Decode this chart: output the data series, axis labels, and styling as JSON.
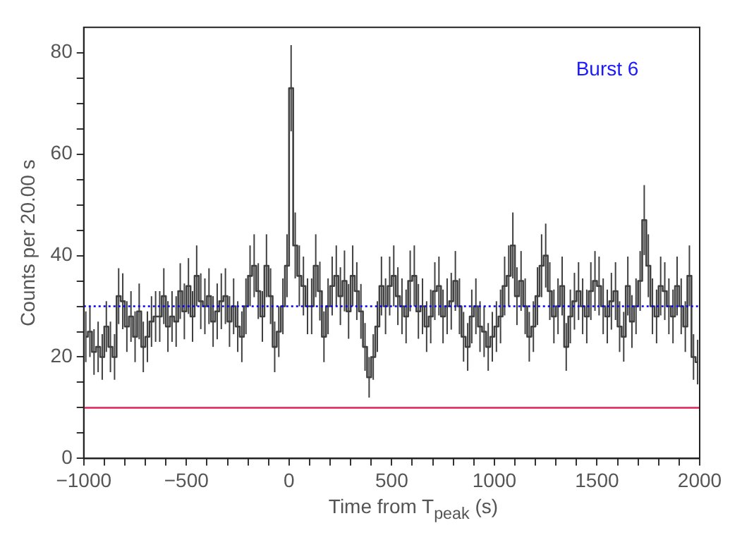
{
  "chart_data": {
    "type": "step",
    "xlabel": "Time from T$_{peak}$ (s)",
    "ylabel": "Counts per 20.00 s",
    "annotations": [
      "Burst 6"
    ],
    "x": [
      -990,
      -970,
      -950,
      -930,
      -910,
      -890,
      -870,
      -850,
      -830,
      -810,
      -790,
      -770,
      -750,
      -730,
      -710,
      -690,
      -670,
      -650,
      -630,
      -610,
      -590,
      -570,
      -550,
      -530,
      -510,
      -490,
      -470,
      -450,
      -430,
      -410,
      -390,
      -370,
      -350,
      -330,
      -310,
      -290,
      -270,
      -250,
      -230,
      -210,
      -190,
      -170,
      -150,
      -130,
      -110,
      -90,
      -70,
      -50,
      -30,
      -10,
      10,
      30,
      50,
      70,
      90,
      110,
      130,
      150,
      170,
      190,
      210,
      230,
      250,
      270,
      290,
      310,
      330,
      350,
      370,
      390,
      410,
      430,
      450,
      470,
      490,
      510,
      530,
      550,
      570,
      590,
      610,
      630,
      650,
      670,
      690,
      710,
      730,
      750,
      770,
      790,
      810,
      830,
      850,
      870,
      890,
      910,
      930,
      950,
      970,
      990,
      1010,
      1030,
      1050,
      1070,
      1090,
      1110,
      1130,
      1150,
      1170,
      1190,
      1210,
      1230,
      1250,
      1270,
      1290,
      1310,
      1330,
      1350,
      1370,
      1390,
      1410,
      1430,
      1450,
      1470,
      1490,
      1510,
      1530,
      1550,
      1570,
      1590,
      1610,
      1630,
      1650,
      1670,
      1690,
      1710,
      1730,
      1750,
      1770,
      1790,
      1810,
      1830,
      1850,
      1870,
      1890,
      1910,
      1930,
      1950,
      1970,
      1990
    ],
    "values": [
      24,
      25,
      21,
      22,
      20,
      26,
      22,
      20,
      32,
      31,
      26,
      28,
      24,
      29,
      22,
      24,
      27,
      28,
      28,
      32,
      26,
      28,
      27,
      33,
      29,
      34,
      28,
      36,
      31,
      30,
      32,
      27,
      29,
      31,
      32,
      27,
      30,
      26,
      24,
      30,
      36,
      38,
      33,
      28,
      38,
      32,
      22,
      25,
      30,
      38,
      73,
      42,
      36,
      34,
      30,
      30,
      38,
      33,
      24,
      30,
      34,
      36,
      32,
      35,
      29,
      36,
      33,
      29,
      22,
      16,
      20,
      26,
      34,
      30,
      34,
      36,
      32,
      30,
      28,
      35,
      36,
      29,
      30,
      26,
      28,
      33,
      34,
      28,
      30,
      31,
      35,
      30,
      24,
      22,
      28,
      30,
      26,
      25,
      22,
      24,
      26,
      28,
      34,
      36,
      42,
      32,
      35,
      30,
      24,
      26,
      32,
      38,
      40,
      33,
      28,
      30,
      34,
      22,
      28,
      31,
      33,
      30,
      28,
      33,
      35,
      34,
      30,
      28,
      31,
      33,
      26,
      24,
      34,
      27,
      30,
      35,
      47,
      38,
      30,
      28,
      34,
      33,
      30,
      28,
      34,
      30,
      26,
      36,
      20,
      19
    ],
    "errors": [
      5,
      5,
      4.5,
      5,
      4.5,
      5,
      5,
      4.5,
      5.5,
      5.5,
      5,
      5,
      5,
      5.5,
      5,
      5,
      5,
      5,
      5,
      5.5,
      5,
      5,
      5,
      5.5,
      5.5,
      5.5,
      5,
      6,
      5.5,
      5.5,
      5.5,
      5,
      5.5,
      5.5,
      5.5,
      5,
      5.5,
      5,
      5,
      5.5,
      6,
      6.2,
      5.5,
      5,
      6.2,
      5.5,
      5,
      5,
      5.5,
      6.2,
      8.5,
      6.5,
      6,
      5.8,
      5.5,
      5.5,
      6.2,
      5.8,
      5,
      5.5,
      5.8,
      6,
      5.7,
      6,
      5.4,
      6,
      5.7,
      5.4,
      4.7,
      4,
      4.5,
      5,
      5.8,
      5.5,
      5.8,
      6,
      5.7,
      5.5,
      5.3,
      6,
      6,
      5.4,
      5.5,
      5,
      5.3,
      5.7,
      5.8,
      5.3,
      5.5,
      5.6,
      5.9,
      5.5,
      4.9,
      4.7,
      5.3,
      5.5,
      5,
      5,
      4.7,
      4.9,
      5,
      5.3,
      5.8,
      6,
      6.5,
      5.7,
      5.9,
      5.5,
      4.9,
      5,
      5.7,
      6.2,
      6.3,
      5.7,
      5.3,
      5.5,
      5.8,
      4.7,
      5.3,
      5.6,
      5.7,
      5.5,
      5.3,
      5.7,
      5.9,
      5.8,
      5.5,
      5.3,
      5.6,
      5.7,
      5,
      4.9,
      5.8,
      5.2,
      5.5,
      5.9,
      6.9,
      6.2,
      5.5,
      5.3,
      5.8,
      5.7,
      5.5,
      5.3,
      5.8,
      5.5,
      5,
      6,
      4.5,
      4.4
    ],
    "color": "#404040",
    "xlim": [
      -1000,
      2000
    ],
    "xticks": [
      {
        "value": -1000,
        "label": "−1000"
      },
      {
        "value": -900,
        "label": null
      },
      {
        "value": -800,
        "label": null
      },
      {
        "value": -700,
        "label": null
      },
      {
        "value": -600,
        "label": null
      },
      {
        "value": -500,
        "label": "−500"
      },
      {
        "value": -400,
        "label": null
      },
      {
        "value": -300,
        "label": null
      },
      {
        "value": -200,
        "label": null
      },
      {
        "value": -100,
        "label": null
      },
      0,
      {
        "value": 100,
        "label": null
      },
      {
        "value": 200,
        "label": null
      },
      {
        "value": 300,
        "label": null
      },
      {
        "value": 400,
        "label": null
      },
      500,
      {
        "value": 600,
        "label": null
      },
      {
        "value": 700,
        "label": null
      },
      {
        "value": 800,
        "label": null
      },
      {
        "value": 900,
        "label": null
      },
      1000,
      {
        "value": 1100,
        "label": null
      },
      {
        "value": 1200,
        "label": null
      },
      {
        "value": 1300,
        "label": null
      },
      {
        "value": 1400,
        "label": null
      },
      1500,
      {
        "value": 1600,
        "label": null
      },
      {
        "value": 1700,
        "label": null
      },
      {
        "value": 1800,
        "label": null
      },
      {
        "value": 1900,
        "label": null
      },
      2000
    ],
    "ylim": [
      0,
      85
    ],
    "yticks": [
      0,
      {
        "value": 5,
        "label": null
      },
      {
        "value": 10,
        "label": null
      },
      {
        "value": 15,
        "label": null
      },
      20,
      {
        "value": 25,
        "label": null
      },
      {
        "value": 30,
        "label": null
      },
      {
        "value": 35,
        "label": null
      },
      40,
      {
        "value": 45,
        "label": null
      },
      {
        "value": 50,
        "label": null
      },
      {
        "value": 55,
        "label": null
      },
      60,
      {
        "value": 65,
        "label": null
      },
      {
        "value": 70,
        "label": null
      },
      {
        "value": 75,
        "label": null
      },
      80
    ],
    "ref_lines": [
      {
        "axis": "y",
        "value": 30,
        "color": "#0000ff",
        "line_style": "dotted"
      },
      {
        "axis": "y",
        "value": 10,
        "color": "#e0205a",
        "line_style": "solid"
      }
    ],
    "grid": false,
    "legend": false
  }
}
